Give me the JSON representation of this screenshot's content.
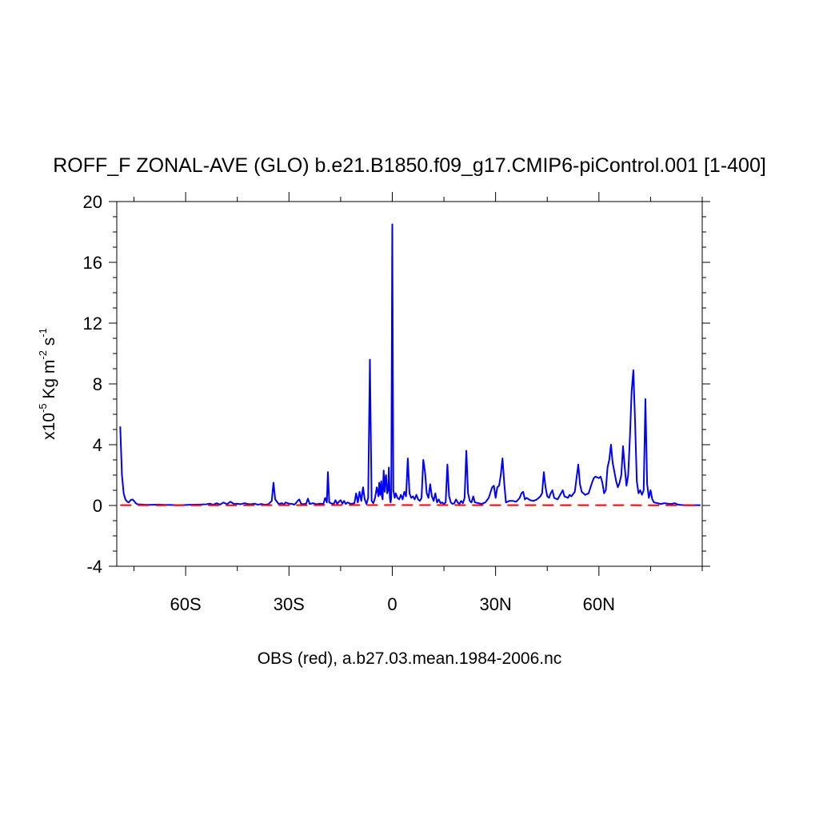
{
  "chart_data": {
    "type": "line",
    "title": "ROFF_F ZONAL-AVE (GLO) b.e21.B1850.f09_g17.CMIP6-piControl.001 [1-400]",
    "xlabel": "OBS (red), a.b27.03.mean.1984-2006.nc",
    "ylabel": {
      "prefix": "x10",
      "exp1": "-5",
      "mid1": " Kg m",
      "exp2": "-2",
      "mid2": " s",
      "exp3": "-1"
    },
    "xlim": [
      -80,
      90
    ],
    "ylim": [
      -4,
      20
    ],
    "x_ticks": [
      {
        "value": -60,
        "label": "60S"
      },
      {
        "value": -30,
        "label": "30S"
      },
      {
        "value": 0,
        "label": "0"
      },
      {
        "value": 30,
        "label": "30N"
      },
      {
        "value": 60,
        "label": "60N"
      }
    ],
    "y_ticks": [
      {
        "value": -4,
        "label": "-4"
      },
      {
        "value": 0,
        "label": "0"
      },
      {
        "value": 4,
        "label": "4"
      },
      {
        "value": 8,
        "label": "8"
      },
      {
        "value": 12,
        "label": "12"
      },
      {
        "value": 16,
        "label": "16"
      },
      {
        "value": 20,
        "label": "20"
      }
    ],
    "grid": false,
    "series": [
      {
        "color": "#0000ff",
        "style": "solid",
        "points": [
          [
            -79,
            5.2
          ],
          [
            -78.5,
            2.0
          ],
          [
            -78,
            0.8
          ],
          [
            -77.5,
            0.4
          ],
          [
            -77,
            0.25
          ],
          [
            -76.5,
            0.2
          ],
          [
            -76,
            0.35
          ],
          [
            -75.5,
            0.4
          ],
          [
            -75,
            0.3
          ],
          [
            -74.5,
            0.15
          ],
          [
            -74,
            0.08
          ],
          [
            -72,
            0.05
          ],
          [
            -70,
            0.04
          ],
          [
            -68,
            0.06
          ],
          [
            -66,
            0.04
          ],
          [
            -64,
            0.03
          ],
          [
            -62,
            0.02
          ],
          [
            -60,
            0.03
          ],
          [
            -58,
            0.05
          ],
          [
            -56,
            0.06
          ],
          [
            -54,
            0.08
          ],
          [
            -53,
            0.12
          ],
          [
            -52,
            0.05
          ],
          [
            -51,
            0.15
          ],
          [
            -50,
            0.06
          ],
          [
            -49,
            0.2
          ],
          [
            -48,
            0.08
          ],
          [
            -47,
            0.25
          ],
          [
            -46,
            0.1
          ],
          [
            -45,
            0.12
          ],
          [
            -44,
            0.08
          ],
          [
            -43,
            0.15
          ],
          [
            -42,
            0.1
          ],
          [
            -41,
            0.08
          ],
          [
            -40,
            0.12
          ],
          [
            -39,
            0.05
          ],
          [
            -38,
            0.1
          ],
          [
            -37,
            0.05
          ],
          [
            -36,
            0.08
          ],
          [
            -35,
            0.3
          ],
          [
            -34.5,
            1.5
          ],
          [
            -34,
            0.4
          ],
          [
            -33,
            0.1
          ],
          [
            -32,
            0.15
          ],
          [
            -31.5,
            0.05
          ],
          [
            -31,
            0.2
          ],
          [
            -30,
            0.12
          ],
          [
            -29,
            0.1
          ],
          [
            -28.5,
            0.05
          ],
          [
            -28,
            0.15
          ],
          [
            -27.5,
            0.3
          ],
          [
            -27,
            0.4
          ],
          [
            -26.5,
            0.12
          ],
          [
            -26,
            0.08
          ],
          [
            -25,
            0.12
          ],
          [
            -24.5,
            0.45
          ],
          [
            -24,
            0.1
          ],
          [
            -23,
            0.15
          ],
          [
            -22,
            0.08
          ],
          [
            -21,
            0.12
          ],
          [
            -20,
            0.1
          ],
          [
            -19.5,
            0.5
          ],
          [
            -19,
            0.2
          ],
          [
            -18.7,
            2.2
          ],
          [
            -18.3,
            0.2
          ],
          [
            -17.5,
            0.12
          ],
          [
            -17,
            0.1
          ],
          [
            -16.5,
            0.35
          ],
          [
            -16,
            0.1
          ],
          [
            -15.5,
            0.25
          ],
          [
            -15,
            0.35
          ],
          [
            -14.5,
            0.12
          ],
          [
            -14,
            0.3
          ],
          [
            -13.5,
            0.1
          ],
          [
            -13,
            0.2
          ],
          [
            -12,
            0.1
          ],
          [
            -11,
            0.15
          ],
          [
            -10.5,
            0.8
          ],
          [
            -10,
            0.2
          ],
          [
            -9.5,
            0.9
          ],
          [
            -9,
            0.3
          ],
          [
            -8.5,
            1.2
          ],
          [
            -8,
            0.4
          ],
          [
            -7.5,
            0.1
          ],
          [
            -7,
            0.5
          ],
          [
            -6.5,
            9.6
          ],
          [
            -6,
            0.3
          ],
          [
            -5.5,
            0.15
          ],
          [
            -5,
            0.5
          ],
          [
            -4.5,
            1.2
          ],
          [
            -4,
            0.6
          ],
          [
            -3.8,
            1.5
          ],
          [
            -3.5,
            0.7
          ],
          [
            -3.2,
            1.6
          ],
          [
            -3,
            0.6
          ],
          [
            -2.8,
            0.4
          ],
          [
            -2.5,
            2.3
          ],
          [
            -2.2,
            0.9
          ],
          [
            -2,
            1.8
          ],
          [
            -1.8,
            2.0
          ],
          [
            -1.5,
            0.8
          ],
          [
            -1.2,
            1.0
          ],
          [
            -1,
            2.5
          ],
          [
            -0.7,
            0.5
          ],
          [
            -0.5,
            0.2
          ],
          [
            -0.3,
            0.5
          ],
          [
            0,
            18.5
          ],
          [
            0.3,
            1.0
          ],
          [
            0.7,
            0.5
          ],
          [
            1,
            0.8
          ],
          [
            1.5,
            0.5
          ],
          [
            2,
            0.4
          ],
          [
            2.5,
            0.7
          ],
          [
            3,
            0.4
          ],
          [
            3.5,
            0.9
          ],
          [
            4,
            0.6
          ],
          [
            4.5,
            3.1
          ],
          [
            5,
            0.8
          ],
          [
            5.5,
            0.5
          ],
          [
            6,
            0.6
          ],
          [
            6.5,
            0.4
          ],
          [
            7,
            0.7
          ],
          [
            7.5,
            0.4
          ],
          [
            8,
            0.3
          ],
          [
            8.5,
            0.5
          ],
          [
            9,
            3.0
          ],
          [
            9.5,
            2.2
          ],
          [
            10,
            0.8
          ],
          [
            10.5,
            0.5
          ],
          [
            11,
            1.4
          ],
          [
            11.5,
            0.6
          ],
          [
            12,
            0.3
          ],
          [
            12.5,
            0.8
          ],
          [
            13,
            0.2
          ],
          [
            13.5,
            0.4
          ],
          [
            14,
            0.15
          ],
          [
            14.5,
            0.2
          ],
          [
            15,
            0.1
          ],
          [
            15.5,
            0.2
          ],
          [
            16,
            2.7
          ],
          [
            16.5,
            0.6
          ],
          [
            17,
            0.2
          ],
          [
            17.5,
            0.1
          ],
          [
            18,
            0.15
          ],
          [
            18.5,
            0.4
          ],
          [
            19,
            0.2
          ],
          [
            19.5,
            0.1
          ],
          [
            20,
            0.3
          ],
          [
            20.5,
            0.15
          ],
          [
            21,
            0.5
          ],
          [
            21.5,
            3.6
          ],
          [
            22,
            0.8
          ],
          [
            22.5,
            0.3
          ],
          [
            23,
            0.2
          ],
          [
            23.5,
            0.6
          ],
          [
            24,
            0.2
          ],
          [
            25,
            0.15
          ],
          [
            26,
            0.1
          ],
          [
            27,
            0.2
          ],
          [
            28,
            0.5
          ],
          [
            29,
            1.2
          ],
          [
            29.5,
            1.3
          ],
          [
            30,
            0.5
          ],
          [
            30.5,
            1.2
          ],
          [
            31,
            1.3
          ],
          [
            31.5,
            2.0
          ],
          [
            32,
            3.1
          ],
          [
            32.5,
            1.5
          ],
          [
            33,
            0.2
          ],
          [
            34,
            0.3
          ],
          [
            35,
            0.3
          ],
          [
            36,
            0.25
          ],
          [
            37,
            0.5
          ],
          [
            37.5,
            0.8
          ],
          [
            38,
            0.9
          ],
          [
            38.5,
            0.4
          ],
          [
            39,
            0.5
          ],
          [
            40,
            0.35
          ],
          [
            41,
            0.3
          ],
          [
            42,
            0.4
          ],
          [
            43,
            0.6
          ],
          [
            43.5,
            0.8
          ],
          [
            44,
            2.2
          ],
          [
            44.5,
            1.2
          ],
          [
            45,
            0.6
          ],
          [
            45.5,
            0.5
          ],
          [
            46,
            0.8
          ],
          [
            46.5,
            1.0
          ],
          [
            47,
            0.5
          ],
          [
            48,
            0.4
          ],
          [
            49,
            0.8
          ],
          [
            49.5,
            1.0
          ],
          [
            50,
            0.6
          ],
          [
            51,
            0.5
          ],
          [
            51.5,
            0.7
          ],
          [
            52,
            0.6
          ],
          [
            53,
            0.9
          ],
          [
            54,
            2.7
          ],
          [
            54.5,
            1.4
          ],
          [
            55,
            0.9
          ],
          [
            56,
            0.7
          ],
          [
            57,
            0.8
          ],
          [
            58,
            1.5
          ],
          [
            58.5,
            1.8
          ],
          [
            59,
            1.9
          ],
          [
            60,
            1.8
          ],
          [
            60.5,
            1.9
          ],
          [
            61,
            1.5
          ],
          [
            61.5,
            0.8
          ],
          [
            62,
            1.0
          ],
          [
            62.5,
            2.5
          ],
          [
            63,
            3.0
          ],
          [
            63.5,
            4.0
          ],
          [
            64,
            2.8
          ],
          [
            64.5,
            2.2
          ],
          [
            65,
            1.6
          ],
          [
            65.5,
            1.2
          ],
          [
            66,
            1.5
          ],
          [
            66.5,
            2.0
          ],
          [
            67,
            3.9
          ],
          [
            67.5,
            2.5
          ],
          [
            68,
            1.3
          ],
          [
            68.5,
            2.0
          ],
          [
            69,
            4.5
          ],
          [
            69.5,
            7.5
          ],
          [
            70,
            8.9
          ],
          [
            70.5,
            5.5
          ],
          [
            71,
            1.6
          ],
          [
            71.5,
            0.8
          ],
          [
            72,
            1.0
          ],
          [
            72.5,
            0.7
          ],
          [
            73,
            1.0
          ],
          [
            73.5,
            7.0
          ],
          [
            74,
            1.4
          ],
          [
            74.5,
            0.5
          ],
          [
            75,
            1.0
          ],
          [
            75.5,
            0.4
          ],
          [
            76,
            0.2
          ],
          [
            77,
            0.15
          ],
          [
            78,
            0.1
          ],
          [
            79,
            0.15
          ],
          [
            80,
            0.12
          ],
          [
            81,
            0.1
          ],
          [
            82,
            0.15
          ],
          [
            82.5,
            0.1
          ],
          [
            83,
            0.05
          ],
          [
            84,
            0.03
          ],
          [
            86,
            0.02
          ],
          [
            88,
            0.02
          ],
          [
            89.5,
            0.02
          ]
        ]
      },
      {
        "color": "#ff0000",
        "style": "dashed",
        "points": [
          [
            -79,
            0.02
          ],
          [
            -60,
            0.01
          ],
          [
            -30,
            0.02
          ],
          [
            0,
            0.03
          ],
          [
            30,
            0.02
          ],
          [
            60,
            0.02
          ],
          [
            89.5,
            0.01
          ]
        ]
      }
    ]
  }
}
